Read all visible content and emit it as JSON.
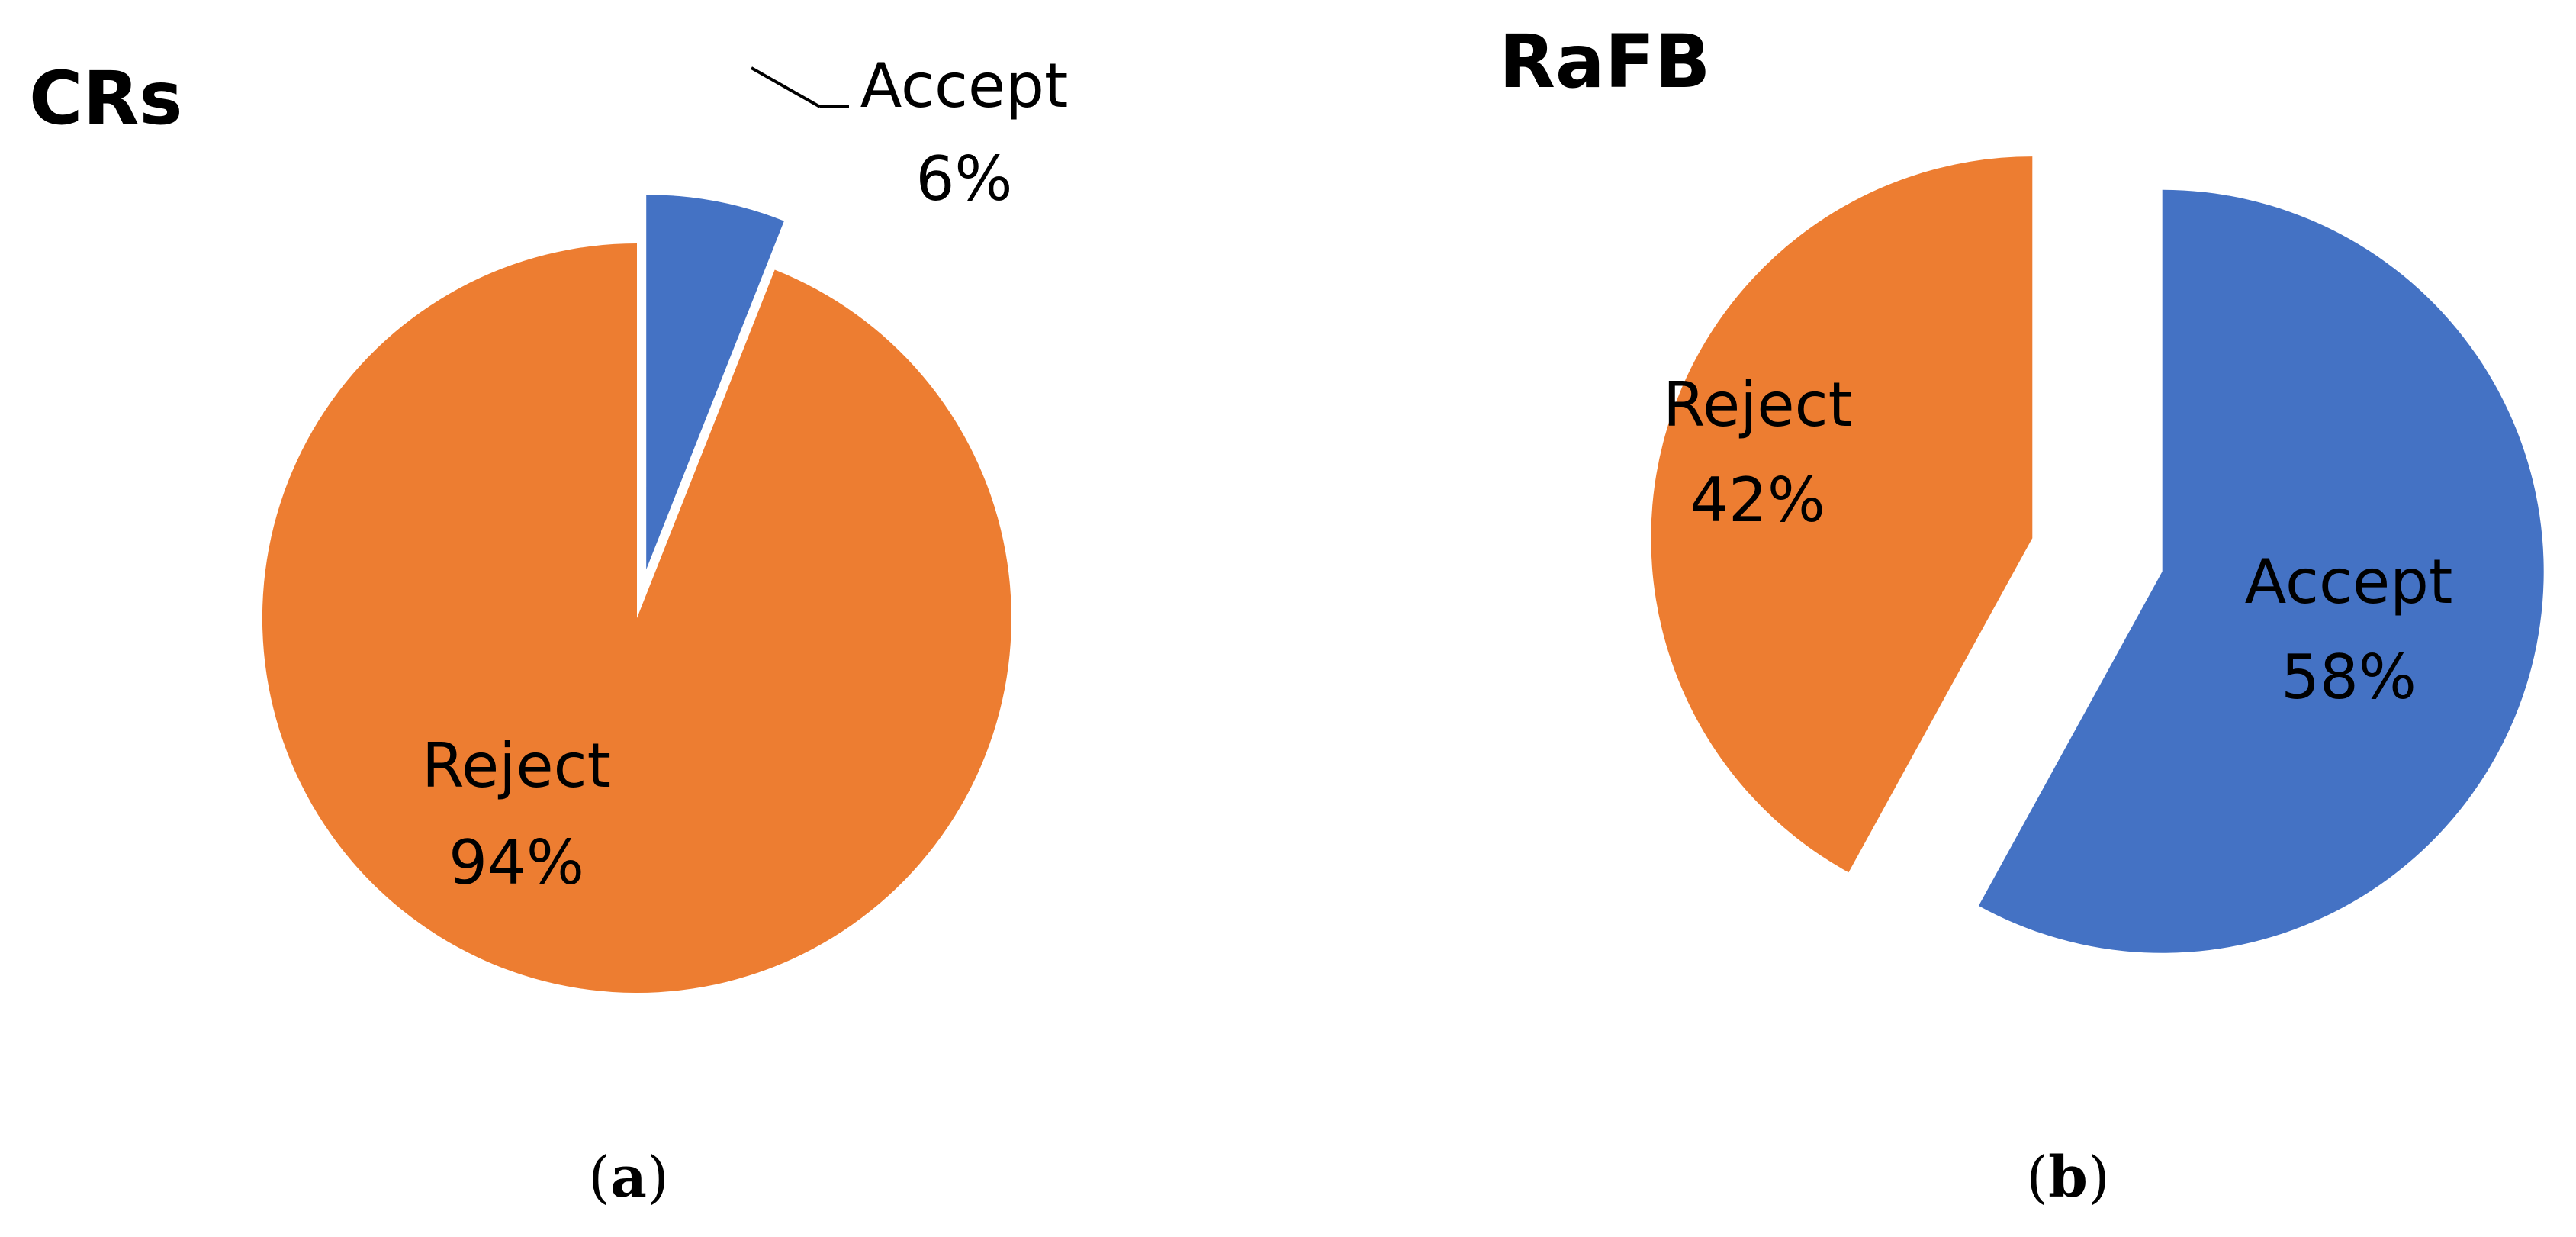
{
  "chart_data": [
    {
      "type": "pie",
      "title": "CRs",
      "caption_letter": "a",
      "slices": [
        {
          "label": "Accept",
          "value": 6,
          "value_label": "6%",
          "color": "#4472C4",
          "exploded": true
        },
        {
          "label": "Reject",
          "value": 94,
          "value_label": "94%",
          "color": "#ED7D31",
          "exploded": false
        }
      ]
    },
    {
      "type": "pie",
      "title": "RaFB",
      "caption_letter": "b",
      "slices": [
        {
          "label": "Accept",
          "value": 58,
          "value_label": "58%",
          "color": "#4472C4",
          "exploded": true
        },
        {
          "label": "Reject",
          "value": 42,
          "value_label": "42%",
          "color": "#ED7D31",
          "exploded": true
        }
      ]
    }
  ]
}
